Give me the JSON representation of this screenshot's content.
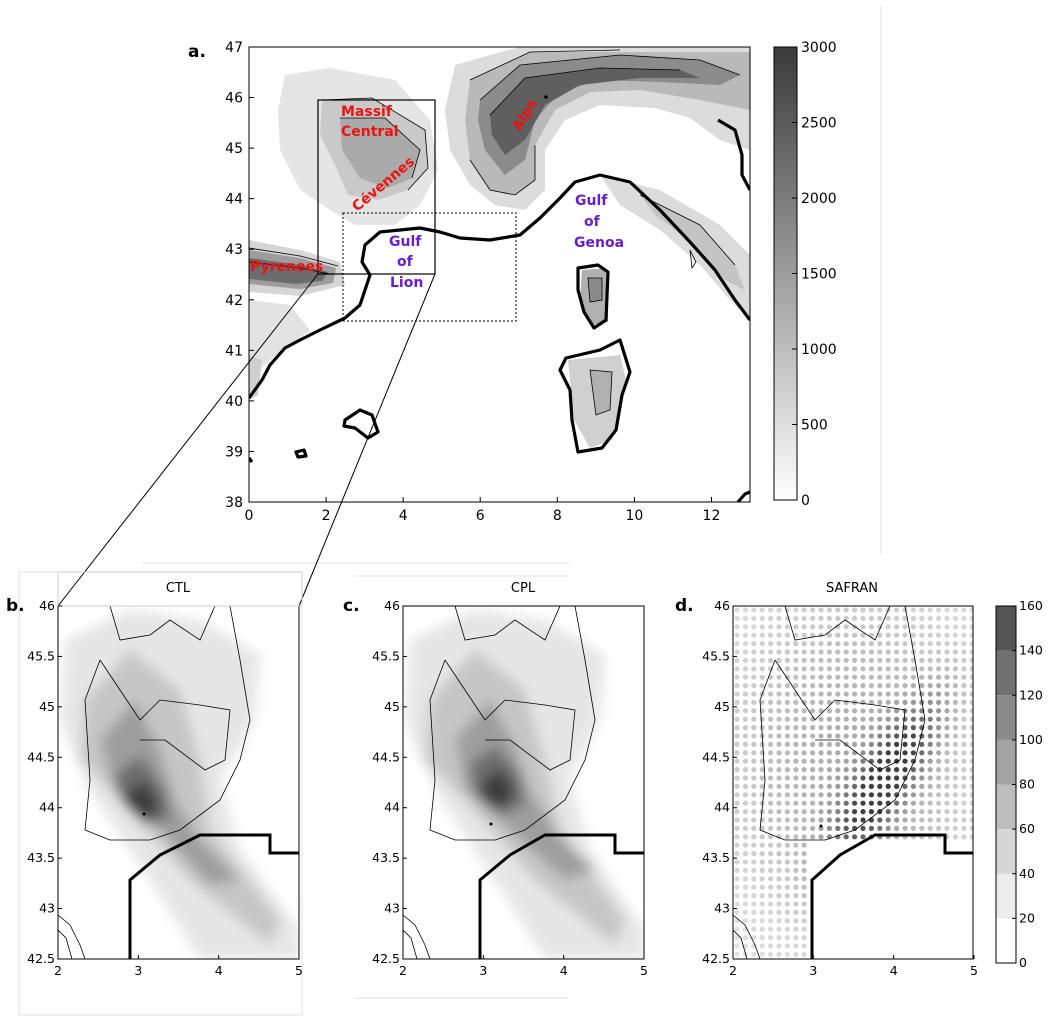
{
  "panel_a": {
    "label": "a.",
    "x_ticks": [
      "0",
      "2",
      "4",
      "6",
      "8",
      "10",
      "12"
    ],
    "y_ticks": [
      "38",
      "39",
      "40",
      "41",
      "42",
      "43",
      "44",
      "45",
      "46",
      "47"
    ],
    "colorbar_ticks": [
      "0",
      "500",
      "1000",
      "1500",
      "2000",
      "2500",
      "3000"
    ],
    "places": {
      "massif": "Massif",
      "central": "Central",
      "cevennes": "Cévennes",
      "alps": "Alps",
      "pyrenees": "Pyrenees",
      "gulf": "Gulf",
      "of": "of",
      "lion": "Lion",
      "genoa": "Genoa"
    },
    "colors": {
      "place_red": "#ee1111",
      "place_blue": "#6a1bd6"
    }
  },
  "panel_b": {
    "label": "b.",
    "title": "CTL"
  },
  "panel_c": {
    "label": "c.",
    "title": "CPL"
  },
  "panel_d": {
    "label": "d.",
    "title": "SAFRAN",
    "colorbar_ticks": [
      "0",
      "20",
      "40",
      "60",
      "80",
      "100",
      "120",
      "140",
      "160"
    ]
  },
  "small_axes": {
    "x_ticks": [
      "2",
      "3",
      "4",
      "5"
    ],
    "y_ticks": [
      "42.5",
      "43",
      "43.5",
      "44",
      "44.5",
      "45",
      "45.5",
      "46"
    ]
  },
  "chart_data": [
    {
      "type": "heatmap",
      "panel": "a",
      "xlim": [
        0,
        13
      ],
      "ylim": [
        38,
        47
      ],
      "colorbar_range": [
        0,
        3000
      ],
      "x_ticks": [
        0,
        2,
        4,
        6,
        8,
        10,
        12
      ],
      "y_ticks": [
        38,
        39,
        40,
        41,
        42,
        43,
        44,
        45,
        46,
        47
      ]
    },
    {
      "type": "heatmap",
      "panel": "b",
      "title": "CTL",
      "xlim": [
        2,
        5
      ],
      "ylim": [
        42.5,
        46
      ]
    },
    {
      "type": "heatmap",
      "panel": "c",
      "title": "CPL",
      "xlim": [
        2,
        5
      ],
      "ylim": [
        42.5,
        46
      ]
    },
    {
      "type": "scatter",
      "panel": "d",
      "title": "SAFRAN",
      "xlim": [
        2,
        5
      ],
      "ylim": [
        42.5,
        46
      ],
      "colorbar_range": [
        0,
        160
      ],
      "colorbar_levels": [
        0,
        20,
        40,
        60,
        80,
        100,
        120,
        140,
        160
      ]
    }
  ]
}
